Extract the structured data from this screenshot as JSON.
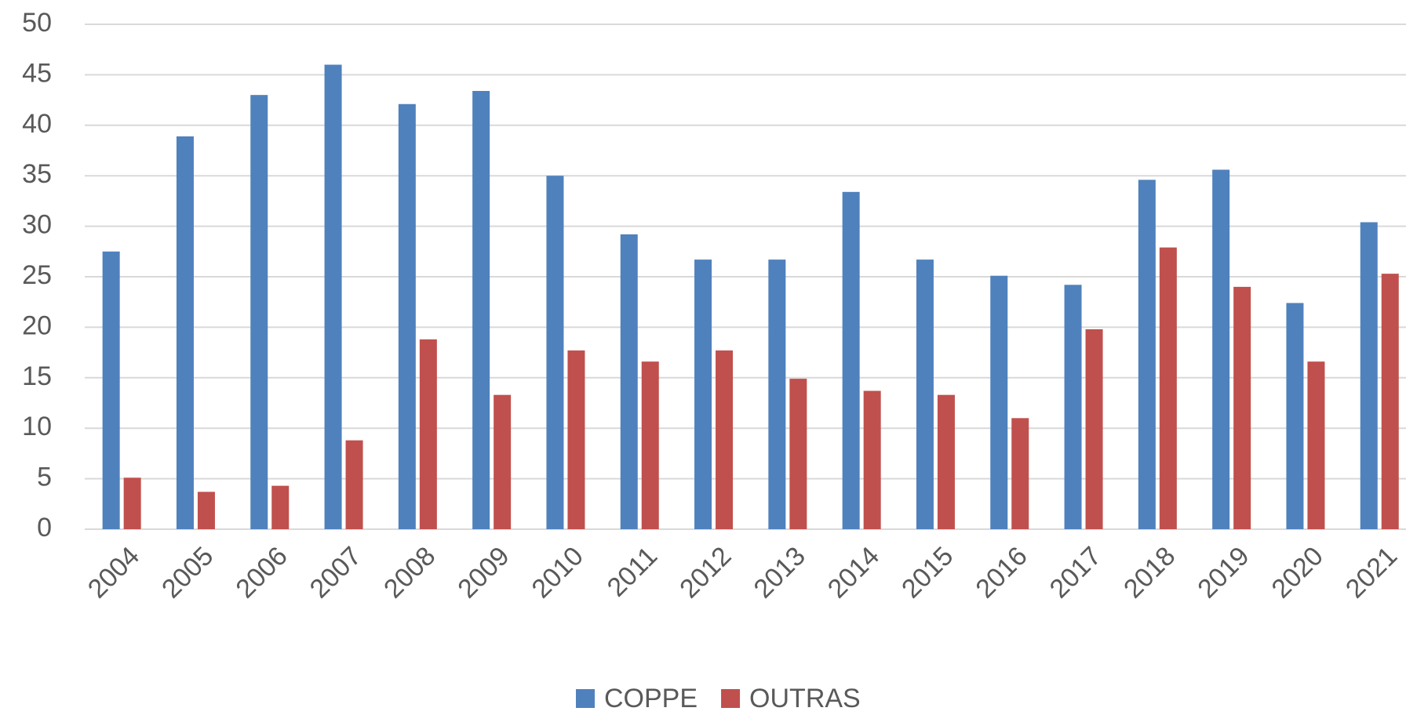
{
  "chart_data": {
    "type": "bar",
    "categories": [
      "2004",
      "2005",
      "2006",
      "2007",
      "2008",
      "2009",
      "2010",
      "2011",
      "2012",
      "2013",
      "2014",
      "2015",
      "2016",
      "2017",
      "2018",
      "2019",
      "2020",
      "2021"
    ],
    "series": [
      {
        "name": "COPPE",
        "color": "#4f81bd",
        "values": [
          27.5,
          38.9,
          43,
          46,
          42.1,
          43.4,
          35,
          29.2,
          26.7,
          26.7,
          33.4,
          26.7,
          25.1,
          24.2,
          34.6,
          35.6,
          22.4,
          30.4
        ]
      },
      {
        "name": "OUTRAS",
        "color": "#c0504d",
        "values": [
          5.1,
          3.7,
          4.3,
          8.8,
          18.8,
          13.3,
          17.7,
          16.6,
          17.7,
          14.9,
          13.7,
          13.3,
          11,
          19.8,
          27.9,
          24,
          16.6,
          25.3
        ]
      }
    ],
    "ylim": [
      0,
      50
    ],
    "yticks": [
      0,
      5,
      10,
      15,
      20,
      25,
      30,
      35,
      40,
      45,
      50
    ],
    "grid": true,
    "legend": "bottom"
  }
}
